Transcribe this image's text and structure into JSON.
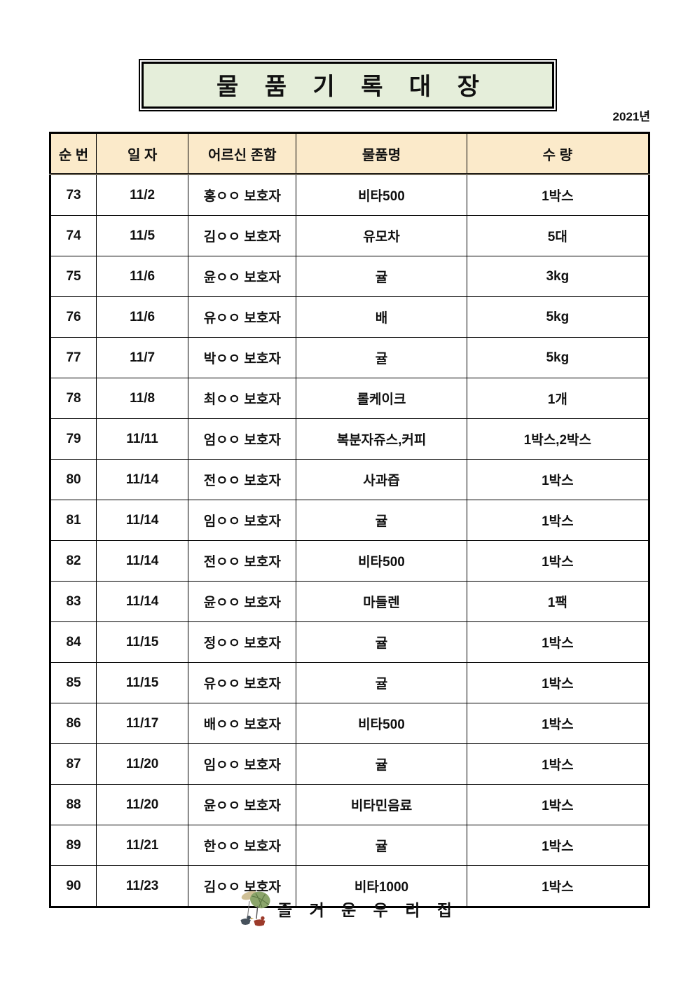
{
  "page": {
    "year_label": "2021년"
  },
  "title": "물 품 기 록 대 장",
  "table": {
    "columns": [
      {
        "key": "no",
        "label": "순 번"
      },
      {
        "key": "date",
        "label": "일 자"
      },
      {
        "key": "name",
        "label": "어르신 존함"
      },
      {
        "key": "item",
        "label": "물품명"
      },
      {
        "key": "qty",
        "label": "수 량"
      }
    ],
    "rows": [
      {
        "no": "73",
        "date": "11/2",
        "name": "홍ㅇㅇ 보호자",
        "item": "비타500",
        "qty": "1박스"
      },
      {
        "no": "74",
        "date": "11/5",
        "name": "김ㅇㅇ 보호자",
        "item": "유모차",
        "qty": "5대"
      },
      {
        "no": "75",
        "date": "11/6",
        "name": "윤ㅇㅇ 보호자",
        "item": "귤",
        "qty": "3kg"
      },
      {
        "no": "76",
        "date": "11/6",
        "name": "유ㅇㅇ 보호자",
        "item": "배",
        "qty": "5kg"
      },
      {
        "no": "77",
        "date": "11/7",
        "name": "박ㅇㅇ 보호자",
        "item": "귤",
        "qty": "5kg"
      },
      {
        "no": "78",
        "date": "11/8",
        "name": "최ㅇㅇ 보호자",
        "item": "롤케이크",
        "qty": "1개"
      },
      {
        "no": "79",
        "date": "11/11",
        "name": "엄ㅇㅇ 보호자",
        "item": "복분자쥬스,커피",
        "qty": "1박스,2박스"
      },
      {
        "no": "80",
        "date": "11/14",
        "name": "전ㅇㅇ 보호자",
        "item": "사과즙",
        "qty": "1박스"
      },
      {
        "no": "81",
        "date": "11/14",
        "name": "임ㅇㅇ 보호자",
        "item": "귤",
        "qty": "1박스"
      },
      {
        "no": "82",
        "date": "11/14",
        "name": "전ㅇㅇ 보호자",
        "item": "비타500",
        "qty": "1박스"
      },
      {
        "no": "83",
        "date": "11/14",
        "name": "윤ㅇㅇ 보호자",
        "item": "마들렌",
        "qty": "1팩"
      },
      {
        "no": "84",
        "date": "11/15",
        "name": "정ㅇㅇ 보호자",
        "item": "귤",
        "qty": "1박스"
      },
      {
        "no": "85",
        "date": "11/15",
        "name": "유ㅇㅇ 보호자",
        "item": "귤",
        "qty": "1박스"
      },
      {
        "no": "86",
        "date": "11/17",
        "name": "배ㅇㅇ 보호자",
        "item": "비타500",
        "qty": "1박스"
      },
      {
        "no": "87",
        "date": "11/20",
        "name": "임ㅇㅇ 보호자",
        "item": "귤",
        "qty": "1박스"
      },
      {
        "no": "88",
        "date": "11/20",
        "name": "윤ㅇㅇ 보호자",
        "item": "비타민음료",
        "qty": "1박스"
      },
      {
        "no": "89",
        "date": "11/21",
        "name": "한ㅇㅇ 보호자",
        "item": "귤",
        "qty": "1박스"
      },
      {
        "no": "90",
        "date": "11/23",
        "name": "김ㅇㅇ 보호자",
        "item": "비타1000",
        "qty": "1박스"
      }
    ]
  },
  "footer": {
    "brand": "즐 거 운 우 리 집",
    "logo": "duck-under-leaf-logo"
  },
  "colors": {
    "title_background": "#e5eeda",
    "header_background": "#fbeaca",
    "border": "#000000",
    "leaf_green": "#8ba56b",
    "duck_navy": "#46515c",
    "duck_red": "#9c3a2a"
  }
}
